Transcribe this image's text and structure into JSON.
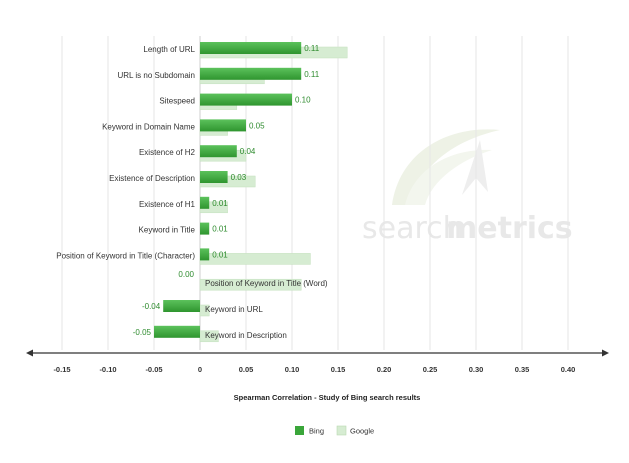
{
  "watermark": {
    "text_a": "search",
    "text_b": "metrics"
  },
  "chart_data": {
    "type": "bar",
    "orientation": "horizontal",
    "categories": [
      "Length of URL",
      "URL is no Subdomain",
      "Sitespeed",
      "Keyword in Domain Name",
      "Existence of H2",
      "Existence of Description",
      "Existence of H1",
      "Keyword in Title",
      "Position of Keyword in Title (Character)",
      "Position of Keyword in Title (Word)",
      "Keyword in URL",
      "Keyword in Description"
    ],
    "series": [
      {
        "name": "Bing",
        "color": "#3aa63a",
        "values": [
          0.11,
          0.11,
          0.1,
          0.05,
          0.04,
          0.03,
          0.01,
          0.01,
          0.01,
          0.0,
          -0.04,
          -0.05
        ],
        "labels": [
          "0.11",
          "0.11",
          "0.10",
          "0.05",
          "0.04",
          "0.03",
          "0.01",
          "0.01",
          "0.01",
          "0.00",
          "-0.04",
          "-0.05"
        ]
      },
      {
        "name": "Google",
        "color": "#d6ecd2",
        "values": [
          0.16,
          0.07,
          0.04,
          0.03,
          0.05,
          0.06,
          0.03,
          0.0,
          0.12,
          0.11,
          0.01,
          0.02
        ]
      }
    ],
    "xlabel": "Spearman Correlation - Study of Bing search results",
    "ylabel": "",
    "xlim": [
      -0.19,
      0.44
    ],
    "xticks": [
      -0.15,
      -0.1,
      -0.05,
      0,
      0.05,
      0.1,
      0.15,
      0.2,
      0.25,
      0.3,
      0.35,
      0.4
    ],
    "xtick_labels": [
      "-0.15",
      "-0.10",
      "-0.05",
      "0",
      "0.05",
      "0.10",
      "0.15",
      "0.20",
      "0.25",
      "0.30",
      "0.35",
      "0.40"
    ],
    "grid": true,
    "legend": "bottom-center"
  }
}
